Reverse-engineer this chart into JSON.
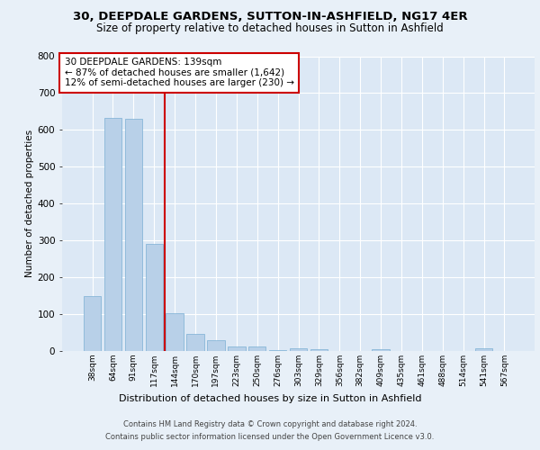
{
  "title1": "30, DEEPDALE GARDENS, SUTTON-IN-ASHFIELD, NG17 4ER",
  "title2": "Size of property relative to detached houses in Sutton in Ashfield",
  "xlabel": "Distribution of detached houses by size in Sutton in Ashfield",
  "ylabel": "Number of detached properties",
  "footnote1": "Contains HM Land Registry data © Crown copyright and database right 2024.",
  "footnote2": "Contains public sector information licensed under the Open Government Licence v3.0.",
  "categories": [
    "38sqm",
    "64sqm",
    "91sqm",
    "117sqm",
    "144sqm",
    "170sqm",
    "197sqm",
    "223sqm",
    "250sqm",
    "276sqm",
    "303sqm",
    "329sqm",
    "356sqm",
    "382sqm",
    "409sqm",
    "435sqm",
    "461sqm",
    "488sqm",
    "514sqm",
    "541sqm",
    "567sqm"
  ],
  "values": [
    150,
    632,
    630,
    290,
    103,
    47,
    30,
    12,
    11,
    2,
    8,
    5,
    0,
    0,
    5,
    0,
    0,
    0,
    0,
    8,
    0
  ],
  "bar_color": "#b8d0e8",
  "bar_edge_color": "#7aafd4",
  "vline_index": 4,
  "annotation_text": "30 DEEPDALE GARDENS: 139sqm\n← 87% of detached houses are smaller (1,642)\n12% of semi-detached houses are larger (230) →",
  "annotation_box_color": "#ffffff",
  "annotation_box_edge": "#cc0000",
  "vline_color": "#cc0000",
  "ylim": [
    0,
    800
  ],
  "yticks": [
    0,
    100,
    200,
    300,
    400,
    500,
    600,
    700,
    800
  ],
  "bg_color": "#e8f0f8",
  "plot_bg_color": "#dce8f5",
  "grid_color": "#ffffff",
  "title1_fontsize": 9.5,
  "title2_fontsize": 8.5
}
